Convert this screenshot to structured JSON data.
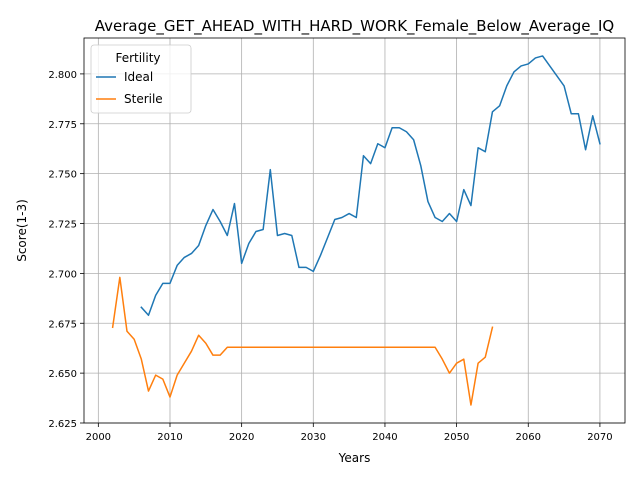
{
  "chart_data": {
    "type": "line",
    "title": "Average_GET_AHEAD_WITH_HARD_WORK_Female_Below_Average_IQ",
    "xlabel": "Years",
    "ylabel": "Score(1-3)",
    "xlim": [
      1998,
      2073.5
    ],
    "ylim": [
      2.625,
      2.818
    ],
    "xticks": [
      2000,
      2010,
      2020,
      2030,
      2040,
      2050,
      2060,
      2070
    ],
    "yticks": [
      2.625,
      2.65,
      2.675,
      2.7,
      2.725,
      2.75,
      2.775,
      2.8
    ],
    "ytick_labels": [
      "2.625",
      "2.650",
      "2.675",
      "2.700",
      "2.725",
      "2.750",
      "2.775",
      "2.800"
    ],
    "grid": true,
    "legend": {
      "title": "Fertility",
      "placement": "top-left"
    },
    "series": [
      {
        "name": "Ideal",
        "color": "#1f77b4",
        "x": [
          2006,
          2007,
          2008,
          2009,
          2010,
          2011,
          2012,
          2013,
          2014,
          2015,
          2016,
          2017,
          2018,
          2019,
          2020,
          2021,
          2022,
          2023,
          2024,
          2025,
          2026,
          2027,
          2028,
          2029,
          2030,
          2031,
          2032,
          2033,
          2034,
          2035,
          2036,
          2037,
          2038,
          2039,
          2040,
          2041,
          2042,
          2043,
          2044,
          2045,
          2046,
          2047,
          2048,
          2049,
          2050,
          2051,
          2052,
          2053,
          2054,
          2055,
          2056,
          2057,
          2058,
          2059,
          2060,
          2061,
          2062,
          2063,
          2064,
          2065,
          2066,
          2067,
          2068,
          2069,
          2070
        ],
        "y": [
          2.683,
          2.679,
          2.689,
          2.695,
          2.695,
          2.704,
          2.708,
          2.71,
          2.714,
          2.724,
          2.732,
          2.726,
          2.719,
          2.735,
          2.705,
          2.715,
          2.721,
          2.722,
          2.752,
          2.719,
          2.72,
          2.719,
          2.703,
          2.703,
          2.701,
          2.709,
          2.718,
          2.727,
          2.728,
          2.73,
          2.728,
          2.759,
          2.755,
          2.765,
          2.763,
          2.773,
          2.773,
          2.771,
          2.767,
          2.754,
          2.736,
          2.728,
          2.726,
          2.73,
          2.726,
          2.742,
          2.734,
          2.763,
          2.761,
          2.781,
          2.784,
          2.794,
          2.801,
          2.804,
          2.805,
          2.808,
          2.809,
          2.804,
          2.799,
          2.794,
          2.78,
          2.78,
          2.762,
          2.779,
          2.765
        ]
      },
      {
        "name": "Sterile",
        "color": "#ff7f0e",
        "x": [
          2002,
          2003,
          2004,
          2005,
          2006,
          2007,
          2008,
          2009,
          2010,
          2011,
          2012,
          2013,
          2014,
          2015,
          2016,
          2017,
          2018,
          2019,
          2020,
          2021,
          2022,
          2023,
          2024,
          2025,
          2026,
          2027,
          2028,
          2029,
          2030,
          2031,
          2032,
          2033,
          2034,
          2035,
          2036,
          2037,
          2038,
          2039,
          2040,
          2041,
          2042,
          2043,
          2044,
          2045,
          2046,
          2047,
          2048,
          2049,
          2050,
          2051,
          2052,
          2053,
          2054,
          2055
        ],
        "y": [
          2.673,
          2.698,
          2.671,
          2.667,
          2.657,
          2.641,
          2.649,
          2.647,
          2.638,
          2.649,
          2.655,
          2.661,
          2.669,
          2.665,
          2.659,
          2.659,
          2.663,
          2.663,
          2.663,
          2.663,
          2.663,
          2.663,
          2.663,
          2.663,
          2.663,
          2.663,
          2.663,
          2.663,
          2.663,
          2.663,
          2.663,
          2.663,
          2.663,
          2.663,
          2.663,
          2.663,
          2.663,
          2.663,
          2.663,
          2.663,
          2.663,
          2.663,
          2.663,
          2.663,
          2.663,
          2.663,
          2.657,
          2.65,
          2.655,
          2.657,
          2.634,
          2.655,
          2.658,
          2.673
        ]
      }
    ]
  }
}
